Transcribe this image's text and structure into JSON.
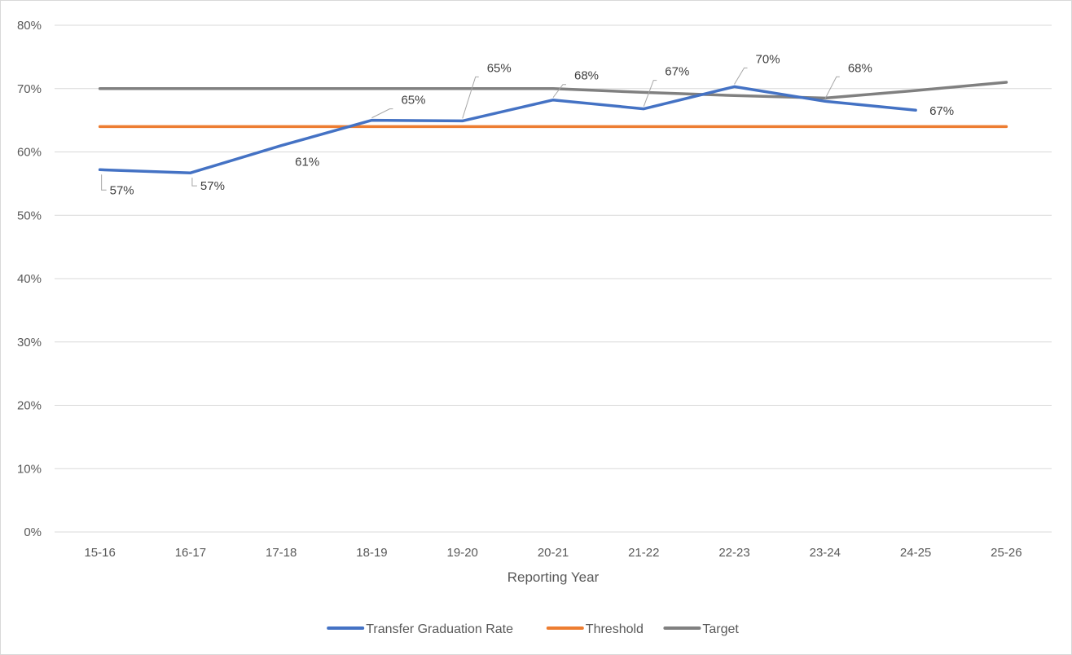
{
  "chart_data": {
    "type": "line",
    "title": "",
    "xlabel": "Reporting Year",
    "ylabel": "",
    "categories": [
      "15-16",
      "16-17",
      "17-18",
      "18-19",
      "19-20",
      "20-21",
      "21-22",
      "22-23",
      "23-24",
      "24-25",
      "25-26"
    ],
    "ylim": [
      0,
      0.8
    ],
    "y_ticks": [
      0,
      0.1,
      0.2,
      0.3,
      0.4,
      0.5,
      0.6,
      0.7,
      0.8
    ],
    "y_tick_labels": [
      "0%",
      "10%",
      "20%",
      "30%",
      "40%",
      "50%",
      "60%",
      "70%",
      "80%"
    ],
    "grid": "horizontal",
    "legend_position": "bottom",
    "series": [
      {
        "name": "Transfer Graduation Rate",
        "color": "#4472c4",
        "values": [
          0.572,
          0.567,
          0.61,
          0.65,
          0.649,
          0.682,
          0.668,
          0.703,
          0.68,
          0.666,
          null
        ],
        "data_labels": [
          "57%",
          "57%",
          "61%",
          "65%",
          "65%",
          "68%",
          "67%",
          "70%",
          "68%",
          "67%",
          null
        ]
      },
      {
        "name": "Threshold",
        "color": "#ed7d31",
        "values": [
          0.64,
          0.64,
          0.64,
          0.64,
          0.64,
          0.64,
          0.64,
          0.64,
          0.64,
          0.64,
          0.64
        ]
      },
      {
        "name": "Target",
        "color": "#808080",
        "values": [
          0.7,
          0.7,
          0.7,
          0.7,
          0.7,
          0.7,
          0.694,
          0.689,
          0.685,
          0.697,
          0.71
        ]
      }
    ]
  }
}
